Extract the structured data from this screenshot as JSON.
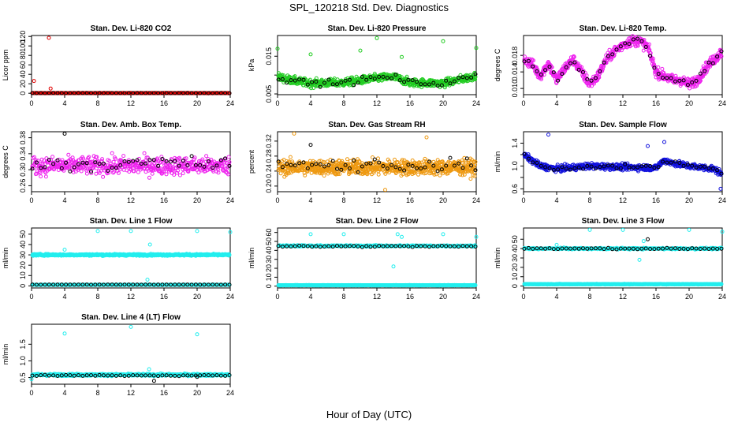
{
  "page": {
    "title": "SPL_120218  Std. Dev. Diagnostics",
    "x_caption": "Hour of Day (UTC)"
  },
  "colors": {
    "black": "#000000",
    "red": "#e00000",
    "green": "#22cc22",
    "magenta": "#ee22ee",
    "orange": "#ee9911",
    "blue": "#1111dd",
    "cyan": "#22eeee"
  },
  "chart_data": [
    {
      "type": "scatter",
      "title": "Stan. Dev. Li-820 CO2",
      "ylabel": "Licor ppm",
      "xlim": [
        0,
        24
      ],
      "xticks": [
        0,
        4,
        8,
        12,
        16,
        20,
        24
      ],
      "ylim": [
        -3,
        122
      ],
      "yticks": [
        0,
        20,
        40,
        60,
        80,
        100,
        120
      ],
      "series": [
        {
          "name": "red",
          "color": "#e00000",
          "base": 0.4,
          "noise": 0.3,
          "n": 220,
          "outliers": [
            [
              0.3,
              26
            ],
            [
              2.1,
              117
            ],
            [
              2.3,
              10
            ]
          ]
        },
        {
          "name": "black",
          "color": "#000000",
          "base": 0.3,
          "noise": 0.15,
          "n": 48,
          "outliers": []
        }
      ]
    },
    {
      "type": "scatter",
      "title": "Stan. Dev. Li-820 Pressure",
      "ylabel": "kPa",
      "xlim": [
        0,
        24
      ],
      "xticks": [
        0,
        4,
        8,
        12,
        16,
        20,
        24
      ],
      "ylim": [
        0.0048,
        0.0205
      ],
      "yticks": [
        0.005,
        0.01,
        0.015
      ],
      "yticklabels": [
        "0.005",
        "",
        "0.015"
      ],
      "series": [
        {
          "name": "green",
          "color": "#22cc22",
          "curve": [
            [
              0,
              0.0095
            ],
            [
              2,
              0.0085
            ],
            [
              4,
              0.0078
            ],
            [
              8,
              0.008
            ],
            [
              12,
              0.0092
            ],
            [
              14,
              0.0095
            ],
            [
              16,
              0.008
            ],
            [
              20,
              0.0078
            ],
            [
              24,
              0.0098
            ]
          ],
          "noise": 0.001,
          "n": 700,
          "outliers": [
            [
              0,
              0.017
            ],
            [
              4,
              0.0155
            ],
            [
              10,
              0.0165
            ],
            [
              12,
              0.0198
            ],
            [
              15,
              0.0148
            ],
            [
              20,
              0.019
            ],
            [
              24,
              0.0172
            ]
          ]
        },
        {
          "name": "black",
          "color": "#000000",
          "curve": [
            [
              0,
              0.0095
            ],
            [
              2,
              0.0085
            ],
            [
              4,
              0.0078
            ],
            [
              8,
              0.008
            ],
            [
              12,
              0.0092
            ],
            [
              14,
              0.0095
            ],
            [
              16,
              0.008
            ],
            [
              20,
              0.0078
            ],
            [
              24,
              0.0098
            ]
          ],
          "noise": 0.0008,
          "n": 48,
          "outliers": []
        }
      ]
    },
    {
      "type": "scatter",
      "title": "Stan. Dev. Li-820 Temp.",
      "ylabel": "degrees C",
      "xlim": [
        0,
        24
      ],
      "xticks": [
        0,
        4,
        8,
        12,
        16,
        20,
        24
      ],
      "ylim": [
        0.0085,
        0.0228
      ],
      "yticks": [
        0.01,
        0.014,
        0.018
      ],
      "yticklabels": [
        "0.010",
        "0.014",
        "0.018"
      ],
      "series": [
        {
          "name": "magenta",
          "color": "#ee22ee",
          "curve": [
            [
              0,
              0.017
            ],
            [
              1,
              0.016
            ],
            [
              2,
              0.013
            ],
            [
              3,
              0.016
            ],
            [
              4,
              0.012
            ],
            [
              5,
              0.015
            ],
            [
              6,
              0.017
            ],
            [
              7,
              0.014
            ],
            [
              8,
              0.011
            ],
            [
              9,
              0.013
            ],
            [
              10,
              0.017
            ],
            [
              11,
              0.019
            ],
            [
              12,
              0.0205
            ],
            [
              13,
              0.0215
            ],
            [
              14,
              0.0215
            ],
            [
              15,
              0.02
            ],
            [
              16,
              0.014
            ],
            [
              17,
              0.013
            ],
            [
              18,
              0.012
            ],
            [
              19,
              0.012
            ],
            [
              20,
              0.011
            ],
            [
              21,
              0.012
            ],
            [
              22,
              0.015
            ],
            [
              23,
              0.017
            ],
            [
              24,
              0.019
            ]
          ],
          "noise": 0.0012,
          "n": 700,
          "outliers": []
        },
        {
          "name": "black",
          "color": "#000000",
          "curve": [
            [
              0,
              0.017
            ],
            [
              1,
              0.016
            ],
            [
              2,
              0.013
            ],
            [
              3,
              0.016
            ],
            [
              4,
              0.012
            ],
            [
              5,
              0.015
            ],
            [
              6,
              0.017
            ],
            [
              7,
              0.014
            ],
            [
              8,
              0.011
            ],
            [
              9,
              0.013
            ],
            [
              10,
              0.017
            ],
            [
              11,
              0.019
            ],
            [
              12,
              0.0205
            ],
            [
              13,
              0.0215
            ],
            [
              14,
              0.0215
            ],
            [
              15,
              0.02
            ],
            [
              16,
              0.014
            ],
            [
              17,
              0.013
            ],
            [
              18,
              0.012
            ],
            [
              19,
              0.012
            ],
            [
              20,
              0.011
            ],
            [
              21,
              0.012
            ],
            [
              22,
              0.015
            ],
            [
              23,
              0.017
            ],
            [
              24,
              0.019
            ]
          ],
          "noise": 0.0007,
          "n": 48,
          "outliers": []
        }
      ]
    },
    {
      "type": "scatter",
      "title": "Stan. Dev. Amb. Box Temp.",
      "ylabel": "degrees C",
      "xlim": [
        0,
        24
      ],
      "xticks": [
        0,
        4,
        8,
        12,
        16,
        20,
        24
      ],
      "ylim": [
        0.245,
        0.395
      ],
      "yticks": [
        0.26,
        0.3,
        0.34,
        0.38
      ],
      "yticklabels": [
        "0.26",
        "0.30",
        "0.34",
        "0.38"
      ],
      "series": [
        {
          "name": "magenta",
          "color": "#ee22ee",
          "base": 0.31,
          "noise": 0.022,
          "n": 520,
          "outliers": []
        },
        {
          "name": "black",
          "color": "#000000",
          "base": 0.315,
          "noise": 0.02,
          "n": 48,
          "outliers": [
            [
              4,
              0.39
            ]
          ]
        }
      ]
    },
    {
      "type": "scatter",
      "title": "Stan. Dev. Gas Stream RH",
      "ylabel": "percent",
      "xlim": [
        0,
        24
      ],
      "xticks": [
        0,
        4,
        8,
        12,
        16,
        20,
        24
      ],
      "ylim": [
        0.185,
        0.345
      ],
      "yticks": [
        0.2,
        0.24,
        0.28,
        0.32
      ],
      "yticklabels": [
        "0.20",
        "0.24",
        "0.28",
        "0.32"
      ],
      "series": [
        {
          "name": "orange",
          "color": "#ee9911",
          "base": 0.25,
          "noise": 0.02,
          "n": 750,
          "outliers": [
            [
              2,
              0.34
            ],
            [
              13,
              0.19
            ],
            [
              18,
              0.33
            ]
          ]
        },
        {
          "name": "black",
          "color": "#000000",
          "base": 0.255,
          "noise": 0.018,
          "n": 48,
          "outliers": [
            [
              4,
              0.31
            ]
          ]
        }
      ]
    },
    {
      "type": "scatter",
      "title": "Stan. Dev. Sample Flow",
      "ylabel": "ml/min",
      "xlim": [
        0,
        24
      ],
      "xticks": [
        0,
        4,
        8,
        12,
        16,
        20,
        24
      ],
      "ylim": [
        0.55,
        1.6
      ],
      "yticks": [
        0.6,
        0.8,
        1.0,
        1.2,
        1.4
      ],
      "yticklabels": [
        "0.6",
        "",
        "1.0",
        "",
        "1.4"
      ],
      "series": [
        {
          "name": "blue",
          "color": "#1111dd",
          "curve": [
            [
              0,
              1.2
            ],
            [
              1,
              1.1
            ],
            [
              2,
              1.0
            ],
            [
              4,
              0.95
            ],
            [
              8,
              1.0
            ],
            [
              12,
              0.98
            ],
            [
              16,
              0.97
            ],
            [
              17,
              1.1
            ],
            [
              18,
              1.05
            ],
            [
              20,
              1.0
            ],
            [
              23,
              0.95
            ],
            [
              24,
              0.85
            ]
          ],
          "noise": 0.05,
          "n": 700,
          "outliers": [
            [
              3,
              1.55
            ],
            [
              15,
              1.35
            ],
            [
              17,
              1.42
            ],
            [
              23.8,
              0.6
            ]
          ]
        },
        {
          "name": "black",
          "color": "#000000",
          "curve": [
            [
              0,
              1.2
            ],
            [
              1,
              1.1
            ],
            [
              2,
              1.0
            ],
            [
              4,
              0.95
            ],
            [
              8,
              1.0
            ],
            [
              12,
              0.98
            ],
            [
              16,
              0.97
            ],
            [
              17,
              1.1
            ],
            [
              18,
              1.05
            ],
            [
              20,
              1.0
            ],
            [
              23,
              0.95
            ],
            [
              24,
              0.85
            ]
          ],
          "noise": 0.04,
          "n": 48,
          "outliers": []
        }
      ]
    },
    {
      "type": "scatter",
      "title": "Stan. Dev. Line 1 Flow",
      "ylabel": "ml/min",
      "xlim": [
        0,
        24
      ],
      "xticks": [
        0,
        4,
        8,
        12,
        16,
        20,
        24
      ],
      "ylim": [
        -2,
        56
      ],
      "yticks": [
        0,
        10,
        20,
        30,
        40,
        50
      ],
      "series": [
        {
          "name": "cyan-upper",
          "color": "#22eeee",
          "base": 30,
          "noise": 0.8,
          "n": 650,
          "outliers": [
            [
              4,
              35
            ],
            [
              8,
              53
            ],
            [
              12,
              53
            ],
            [
              14,
              6
            ],
            [
              14.3,
              40
            ],
            [
              20,
              53
            ],
            [
              24,
              52
            ]
          ]
        },
        {
          "name": "cyan-lower",
          "color": "#22eeee",
          "base": 1.0,
          "noise": 0.2,
          "n": 260,
          "outliers": []
        },
        {
          "name": "black",
          "color": "#000000",
          "base": 1.2,
          "noise": 0.1,
          "n": 48,
          "outliers": []
        }
      ]
    },
    {
      "type": "scatter",
      "title": "Stan. Dev. Line 2 Flow",
      "ylabel": "ml/min",
      "xlim": [
        0,
        24
      ],
      "xticks": [
        0,
        4,
        8,
        12,
        16,
        20,
        24
      ],
      "ylim": [
        -2,
        65
      ],
      "yticks": [
        0,
        10,
        20,
        30,
        40,
        50,
        60
      ],
      "series": [
        {
          "name": "cyan-upper",
          "color": "#22eeee",
          "base": 45,
          "noise": 0.8,
          "n": 320,
          "outliers": [
            [
              4,
              58
            ],
            [
              8,
              58
            ],
            [
              14,
              22
            ],
            [
              14.5,
              58
            ],
            [
              15,
              55
            ],
            [
              20,
              58
            ],
            [
              24,
              55
            ]
          ]
        },
        {
          "name": "cyan-lower",
          "color": "#22eeee",
          "base": 1.0,
          "noise": 0.2,
          "n": 600,
          "outliers": []
        },
        {
          "name": "black",
          "color": "#000000",
          "base": 44.5,
          "noise": 0.8,
          "n": 48,
          "outliers": []
        }
      ]
    },
    {
      "type": "scatter",
      "title": "Stan. Dev. Line 3 Flow",
      "ylabel": "ml/min",
      "xlim": [
        0,
        24
      ],
      "xticks": [
        0,
        4,
        8,
        12,
        16,
        20,
        24
      ],
      "ylim": [
        -2,
        62
      ],
      "yticks": [
        0,
        10,
        20,
        30,
        40,
        50
      ],
      "series": [
        {
          "name": "cyan-upper",
          "color": "#22eeee",
          "base": 40,
          "noise": 0.8,
          "n": 300,
          "outliers": [
            [
              4,
              44
            ],
            [
              8,
              60
            ],
            [
              12,
              60
            ],
            [
              14,
              28
            ],
            [
              14.5,
              48
            ],
            [
              20,
              60
            ],
            [
              24,
              58
            ]
          ]
        },
        {
          "name": "cyan-lower",
          "color": "#22eeee",
          "base": 2.0,
          "noise": 0.3,
          "n": 600,
          "outliers": []
        },
        {
          "name": "black",
          "color": "#000000",
          "base": 40,
          "noise": 0.6,
          "n": 48,
          "outliers": [
            [
              15,
              50
            ]
          ]
        }
      ]
    },
    {
      "type": "scatter",
      "title": "Stan. Dev. Line 4 (LT) Flow",
      "ylabel": "ml/min",
      "xlim": [
        0,
        24
      ],
      "xticks": [
        0,
        4,
        8,
        12,
        16,
        20,
        24
      ],
      "ylim": [
        0.3,
        2.1
      ],
      "yticks": [
        0.5,
        1.0,
        1.5
      ],
      "yticklabels": [
        "0.5",
        "1.0",
        "1.5"
      ],
      "series": [
        {
          "name": "cyan",
          "color": "#22eeee",
          "base": 0.58,
          "noise": 0.03,
          "n": 700,
          "outliers": [
            [
              0,
              0.45
            ],
            [
              4,
              1.82
            ],
            [
              12,
              2.02
            ],
            [
              14.2,
              0.75
            ],
            [
              20,
              1.8
            ]
          ]
        },
        {
          "name": "black",
          "color": "#000000",
          "base": 0.56,
          "noise": 0.02,
          "n": 48,
          "outliers": [
            [
              14.8,
              0.4
            ],
            [
              20,
              0.52
            ]
          ]
        }
      ]
    }
  ]
}
